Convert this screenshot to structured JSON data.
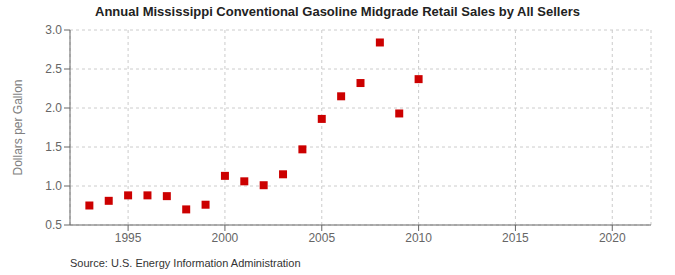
{
  "chart_data": {
    "type": "scatter",
    "title": "Annual Mississippi Conventional Gasoline Midgrade Retail Sales by All Sellers",
    "ylabel": "Dollars per Gallon",
    "source": "Source: U.S. Energy Information Administration",
    "x": [
      1993,
      1994,
      1995,
      1996,
      1997,
      1998,
      1999,
      2000,
      2001,
      2002,
      2003,
      2004,
      2005,
      2006,
      2007,
      2008,
      2009,
      2010
    ],
    "values": [
      0.75,
      0.81,
      0.88,
      0.88,
      0.87,
      0.7,
      0.76,
      1.13,
      1.06,
      1.01,
      1.15,
      1.47,
      1.86,
      2.15,
      2.32,
      2.84,
      1.93,
      2.37
    ],
    "color": "#cc0000",
    "marker": "square",
    "xlim": [
      1992,
      2022
    ],
    "ylim": [
      0.5,
      3.0
    ],
    "xticks": [
      1995,
      2000,
      2005,
      2010,
      2015,
      2020
    ],
    "yticks": [
      0.5,
      {
        "value": 1,
        "label": "1.0"
      },
      1.5,
      {
        "value": 2,
        "label": "2.0"
      },
      2.5,
      {
        "value": 3,
        "label": "3.0"
      }
    ],
    "grid": true
  }
}
